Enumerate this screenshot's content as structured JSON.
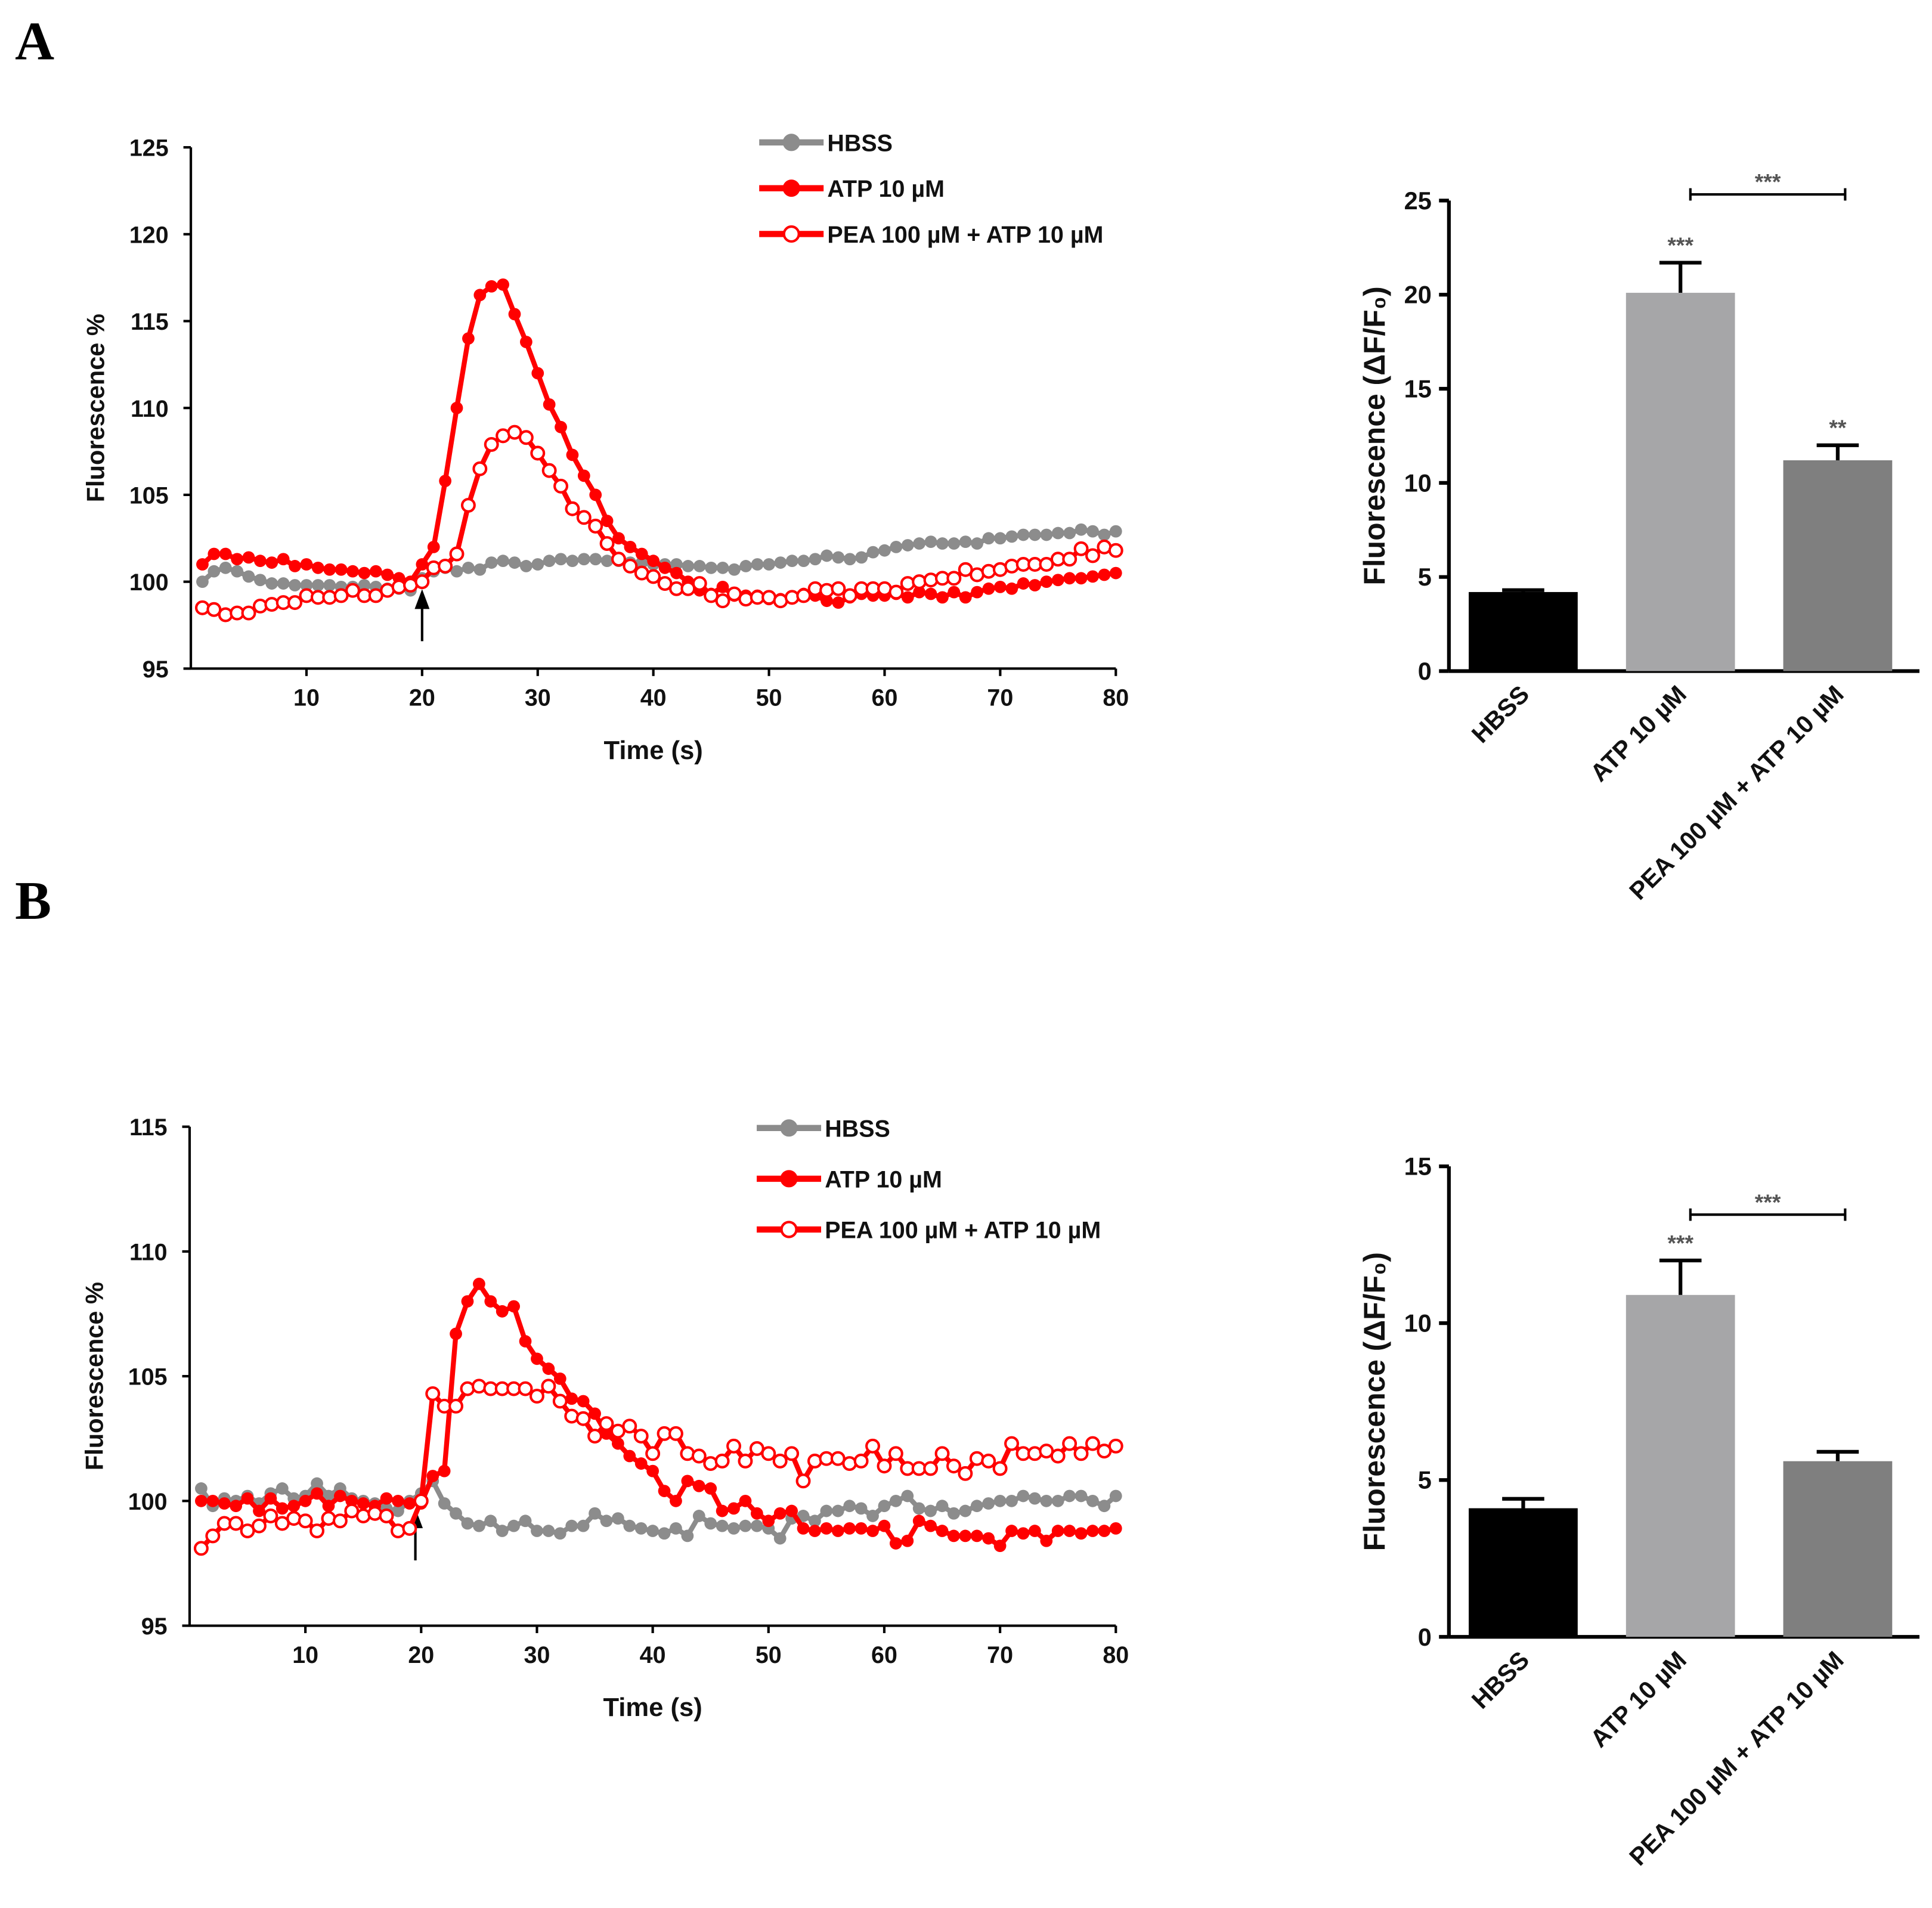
{
  "panels": [
    "A",
    "B"
  ],
  "chart_data": [
    {
      "type": "line",
      "panel": "A",
      "xlabel": "Time (s)",
      "ylabel": "Fluorescence %",
      "xlim": [
        0,
        80
      ],
      "ylim": [
        95,
        125
      ],
      "xticks": [
        10,
        20,
        30,
        40,
        50,
        60,
        70,
        80
      ],
      "yticks": [
        95,
        100,
        105,
        110,
        115,
        120,
        125
      ],
      "annotation": "arrow at t = 20 s (stimulus addition)",
      "arrow_x": 20,
      "legend_position": "top-right",
      "x": [
        1,
        2,
        3,
        4,
        5,
        6,
        7,
        8,
        9,
        10,
        11,
        12,
        13,
        14,
        15,
        16,
        17,
        18,
        19,
        20,
        21,
        22,
        23,
        24,
        25,
        26,
        27,
        28,
        29,
        30,
        31,
        32,
        33,
        34,
        35,
        36,
        37,
        38,
        39,
        40,
        41,
        42,
        43,
        44,
        45,
        46,
        47,
        48,
        49,
        50,
        51,
        52,
        53,
        54,
        55,
        56,
        57,
        58,
        59,
        60,
        61,
        62,
        63,
        64,
        65,
        66,
        67,
        68,
        69,
        70,
        71,
        72,
        73,
        74,
        75,
        76,
        77,
        78,
        79,
        80
      ],
      "series": [
        {
          "name": "HBSS",
          "color": "#8c8c8c",
          "marker": "filled",
          "values": [
            100.0,
            100.6,
            100.8,
            100.6,
            100.3,
            100.1,
            99.9,
            99.9,
            99.8,
            99.8,
            99.8,
            99.8,
            99.7,
            99.7,
            99.8,
            99.7,
            99.6,
            99.6,
            99.5,
            100.2,
            100.6,
            100.8,
            100.6,
            100.8,
            100.7,
            101.1,
            101.2,
            101.1,
            100.9,
            101.0,
            101.2,
            101.3,
            101.2,
            101.3,
            101.3,
            101.2,
            101.2,
            101.1,
            101.1,
            101.0,
            101.0,
            101.0,
            100.9,
            100.9,
            100.8,
            100.8,
            100.7,
            100.9,
            101.0,
            101.0,
            101.1,
            101.2,
            101.2,
            101.3,
            101.5,
            101.4,
            101.3,
            101.4,
            101.7,
            101.8,
            102.0,
            102.1,
            102.2,
            102.3,
            102.2,
            102.2,
            102.3,
            102.2,
            102.5,
            102.5,
            102.6,
            102.7,
            102.7,
            102.7,
            102.8,
            102.8,
            103.0,
            102.9,
            102.7,
            102.9
          ]
        },
        {
          "name": "ATP 10 µM",
          "color": "#ff0000",
          "marker": "filled",
          "values": [
            101.0,
            101.6,
            101.6,
            101.3,
            101.4,
            101.2,
            101.1,
            101.3,
            100.9,
            101.0,
            100.8,
            100.7,
            100.7,
            100.6,
            100.5,
            100.6,
            100.4,
            100.2,
            100.0,
            101.0,
            102.0,
            105.8,
            110.0,
            114.0,
            116.5,
            117.0,
            117.1,
            115.4,
            113.8,
            112.0,
            110.2,
            108.9,
            107.3,
            106.1,
            105.0,
            103.5,
            102.5,
            102.0,
            101.6,
            101.2,
            100.8,
            100.5,
            100.0,
            99.5,
            99.3,
            99.7,
            99.2,
            99.2,
            99.2,
            99.0,
            99.0,
            99.1,
            99.3,
            99.2,
            98.9,
            98.8,
            99.1,
            99.3,
            99.2,
            99.2,
            99.3,
            99.1,
            99.4,
            99.3,
            99.1,
            99.4,
            99.1,
            99.4,
            99.6,
            99.7,
            99.6,
            99.9,
            99.8,
            100.0,
            100.1,
            100.2,
            100.2,
            100.3,
            100.4,
            100.5
          ]
        },
        {
          "name": "PEA 100 µM + ATP 10 µM",
          "color": "#ff0000",
          "marker": "open",
          "values": [
            98.5,
            98.4,
            98.1,
            98.2,
            98.2,
            98.6,
            98.7,
            98.8,
            98.8,
            99.2,
            99.1,
            99.1,
            99.2,
            99.5,
            99.2,
            99.2,
            99.5,
            99.7,
            99.8,
            100.0,
            100.8,
            100.9,
            101.6,
            104.4,
            106.5,
            107.9,
            108.4,
            108.6,
            108.3,
            107.4,
            106.4,
            105.5,
            104.2,
            103.7,
            103.2,
            102.2,
            101.3,
            100.9,
            100.5,
            100.3,
            99.9,
            99.6,
            99.6,
            99.9,
            99.2,
            98.9,
            99.3,
            99.0,
            99.1,
            99.1,
            98.9,
            99.1,
            99.2,
            99.6,
            99.5,
            99.6,
            99.2,
            99.6,
            99.6,
            99.6,
            99.4,
            99.9,
            100.0,
            100.1,
            100.2,
            100.2,
            100.7,
            100.4,
            100.6,
            100.7,
            100.9,
            101.0,
            101.0,
            101.0,
            101.3,
            101.3,
            101.9,
            101.5,
            102.0,
            101.8
          ]
        }
      ]
    },
    {
      "type": "bar",
      "panel": "A",
      "ylabel": "Fluorescence (ΔF/F₀)",
      "ylim": [
        0,
        25
      ],
      "yticks": [
        0,
        5,
        10,
        15,
        20,
        25
      ],
      "categories": [
        "HBSS",
        "ATP 10 µM",
        "PEA 100 µM + ATP 10 µM"
      ],
      "values": [
        4.2,
        20.1,
        11.2
      ],
      "errors": [
        0.1,
        1.6,
        0.8
      ],
      "colors": [
        "#000000",
        "#a6a6a8",
        "#7f7f7f"
      ],
      "significance": [
        "",
        "***",
        "**"
      ],
      "bracket": {
        "from": 1,
        "to": 2,
        "label": "***"
      }
    },
    {
      "type": "line",
      "panel": "B",
      "xlabel": "Time (s)",
      "ylabel": "Fluorescence %",
      "xlim": [
        0,
        80
      ],
      "ylim": [
        95,
        115
      ],
      "xticks": [
        10,
        20,
        30,
        40,
        50,
        60,
        70,
        80
      ],
      "yticks": [
        95,
        100,
        105,
        110,
        115
      ],
      "annotation": "arrow at t = 19.5 s (stimulus addition)",
      "arrow_x": 19.5,
      "legend_position": "top-right",
      "x": [
        1,
        2,
        3,
        4,
        5,
        6,
        7,
        8,
        9,
        10,
        11,
        12,
        13,
        14,
        15,
        16,
        17,
        18,
        19,
        20,
        21,
        22,
        23,
        24,
        25,
        26,
        27,
        28,
        29,
        30,
        31,
        32,
        33,
        34,
        35,
        36,
        37,
        38,
        39,
        40,
        41,
        42,
        43,
        44,
        45,
        46,
        47,
        48,
        49,
        50,
        51,
        52,
        53,
        54,
        55,
        56,
        57,
        58,
        59,
        60,
        61,
        62,
        63,
        64,
        65,
        66,
        67,
        68,
        69,
        70,
        71,
        72,
        73,
        74,
        75,
        76,
        77,
        78,
        79,
        80
      ],
      "series": [
        {
          "name": "HBSS",
          "color": "#8c8c8c",
          "marker": "filled",
          "values": [
            100.5,
            99.8,
            100.1,
            100.0,
            100.2,
            99.9,
            100.3,
            100.5,
            100.1,
            100.2,
            100.7,
            100.2,
            100.5,
            100.1,
            100.0,
            99.9,
            99.7,
            99.6,
            100.0,
            100.3,
            100.8,
            99.9,
            99.5,
            99.1,
            99.0,
            99.2,
            98.8,
            99.0,
            99.2,
            98.8,
            98.8,
            98.7,
            99.0,
            99.0,
            99.5,
            99.2,
            99.3,
            99.0,
            98.9,
            98.8,
            98.7,
            98.9,
            98.6,
            99.4,
            99.1,
            99.0,
            98.9,
            99.0,
            99.0,
            98.9,
            98.5,
            99.3,
            99.4,
            99.2,
            99.6,
            99.6,
            99.8,
            99.7,
            99.4,
            99.8,
            100.0,
            100.2,
            99.7,
            99.6,
            99.8,
            99.5,
            99.6,
            99.8,
            99.9,
            100.0,
            100.0,
            100.2,
            100.1,
            100.0,
            100.0,
            100.2,
            100.2,
            100.0,
            99.8,
            100.2
          ]
        },
        {
          "name": "ATP 10 µM",
          "color": "#ff0000",
          "marker": "filled",
          "values": [
            100.0,
            100.0,
            99.9,
            99.8,
            100.1,
            99.6,
            100.1,
            99.7,
            99.8,
            100.0,
            100.3,
            99.8,
            100.2,
            100.0,
            99.9,
            99.8,
            100.1,
            100.0,
            99.9,
            99.9,
            101.0,
            101.2,
            106.7,
            108.0,
            108.7,
            108.0,
            107.6,
            107.8,
            106.4,
            105.7,
            105.3,
            104.9,
            104.1,
            104.0,
            103.5,
            102.7,
            102.3,
            101.8,
            101.5,
            101.2,
            100.4,
            100.0,
            100.8,
            100.6,
            100.5,
            99.6,
            99.7,
            100.0,
            99.5,
            99.2,
            99.5,
            99.6,
            98.9,
            98.8,
            98.9,
            98.8,
            98.9,
            98.9,
            98.8,
            99.0,
            98.3,
            98.4,
            99.2,
            99.0,
            98.8,
            98.6,
            98.6,
            98.6,
            98.5,
            98.2,
            98.8,
            98.7,
            98.8,
            98.4,
            98.8,
            98.8,
            98.7,
            98.8,
            98.8,
            98.9
          ]
        },
        {
          "name": "PEA 100 µM + ATP 10 µM",
          "color": "#ff0000",
          "marker": "open",
          "values": [
            98.1,
            98.6,
            99.1,
            99.1,
            98.8,
            99.0,
            99.4,
            99.1,
            99.3,
            99.2,
            98.8,
            99.3,
            99.2,
            99.6,
            99.4,
            99.5,
            99.4,
            98.8,
            98.9,
            100.0,
            104.3,
            103.8,
            103.8,
            104.5,
            104.6,
            104.5,
            104.5,
            104.5,
            104.5,
            104.2,
            104.6,
            104.0,
            103.4,
            103.3,
            102.6,
            103.1,
            102.8,
            103.0,
            102.6,
            101.9,
            102.7,
            102.7,
            101.9,
            101.8,
            101.5,
            101.6,
            102.2,
            101.6,
            102.1,
            101.9,
            101.6,
            101.9,
            100.8,
            101.6,
            101.7,
            101.7,
            101.5,
            101.6,
            102.2,
            101.4,
            101.9,
            101.3,
            101.3,
            101.3,
            101.9,
            101.4,
            101.1,
            101.7,
            101.6,
            101.3,
            102.3,
            101.9,
            101.9,
            102.0,
            101.8,
            102.3,
            101.9,
            102.3,
            102.0,
            102.2
          ]
        }
      ]
    },
    {
      "type": "bar",
      "panel": "B",
      "ylabel": "Fluorescence (ΔF/F₀)",
      "ylim": [
        0,
        15
      ],
      "yticks": [
        0,
        5,
        10,
        15
      ],
      "categories": [
        "HBSS",
        "ATP 10 µM",
        "PEA 100 µM + ATP 10 µM"
      ],
      "values": [
        4.1,
        10.9,
        5.6
      ],
      "errors": [
        0.3,
        1.1,
        0.3
      ],
      "colors": [
        "#000000",
        "#a6a6a8",
        "#7f7f7f"
      ],
      "significance": [
        "",
        "***",
        ""
      ],
      "bracket": {
        "from": 1,
        "to": 2,
        "label": "***"
      }
    }
  ]
}
